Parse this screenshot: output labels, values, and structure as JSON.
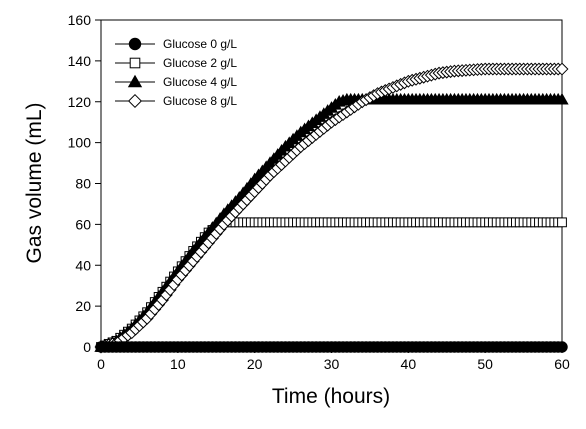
{
  "chart_data": {
    "type": "line",
    "xlabel": "Time (hours)",
    "ylabel": "Gas volume (mL)",
    "xlim": [
      0,
      60
    ],
    "ylim": [
      0,
      160
    ],
    "xticks": [
      0,
      10,
      20,
      30,
      40,
      50,
      60
    ],
    "yticks": [
      0,
      20,
      40,
      60,
      80,
      100,
      120,
      140,
      160
    ],
    "grid": false,
    "legend_position": "top-left",
    "sample_interval_hours": 0.5,
    "series": [
      {
        "name": "Glucose 0 g/L",
        "marker": "filled-circle",
        "color": "#000000",
        "x": [
          0,
          5,
          10,
          15,
          20,
          25,
          30,
          35,
          40,
          45,
          50,
          55,
          60
        ],
        "y": [
          0,
          0,
          0,
          0,
          0,
          0,
          0,
          0,
          0,
          0,
          0,
          0,
          0
        ]
      },
      {
        "name": "Glucose 2 g/L",
        "marker": "open-square",
        "color": "#000000",
        "x": [
          0,
          2,
          4,
          6,
          8,
          10,
          12,
          14,
          16,
          18,
          20,
          30,
          40,
          50,
          60
        ],
        "y": [
          0,
          3,
          9,
          17,
          27,
          37,
          47,
          56,
          61,
          61,
          61,
          61,
          61,
          61,
          61
        ]
      },
      {
        "name": "Glucose 4 g/L",
        "marker": "filled-triangle",
        "color": "#000000",
        "x": [
          0,
          2,
          4,
          6,
          8,
          10,
          12,
          14,
          16,
          18,
          20,
          22,
          24,
          26,
          28,
          30,
          31,
          32,
          36,
          40,
          50,
          60
        ],
        "y": [
          0,
          3,
          9,
          17,
          27,
          37,
          47,
          56,
          65,
          73,
          82,
          90,
          98,
          105,
          111,
          117,
          120,
          121,
          121,
          121,
          121,
          121
        ]
      },
      {
        "name": "Glucose 8 g/L",
        "marker": "open-diamond",
        "color": "#000000",
        "x": [
          0,
          2,
          4,
          6,
          8,
          10,
          12,
          14,
          16,
          18,
          20,
          22,
          24,
          26,
          28,
          30,
          32,
          34,
          36,
          38,
          40,
          42,
          44,
          46,
          48,
          50,
          55,
          60
        ],
        "y": [
          0,
          2,
          7,
          14,
          23,
          33,
          42,
          51,
          60,
          68,
          76,
          84,
          91,
          98,
          104,
          110,
          115,
          120,
          124,
          127,
          130,
          132,
          134,
          135,
          135.5,
          136,
          136,
          136
        ]
      }
    ]
  }
}
